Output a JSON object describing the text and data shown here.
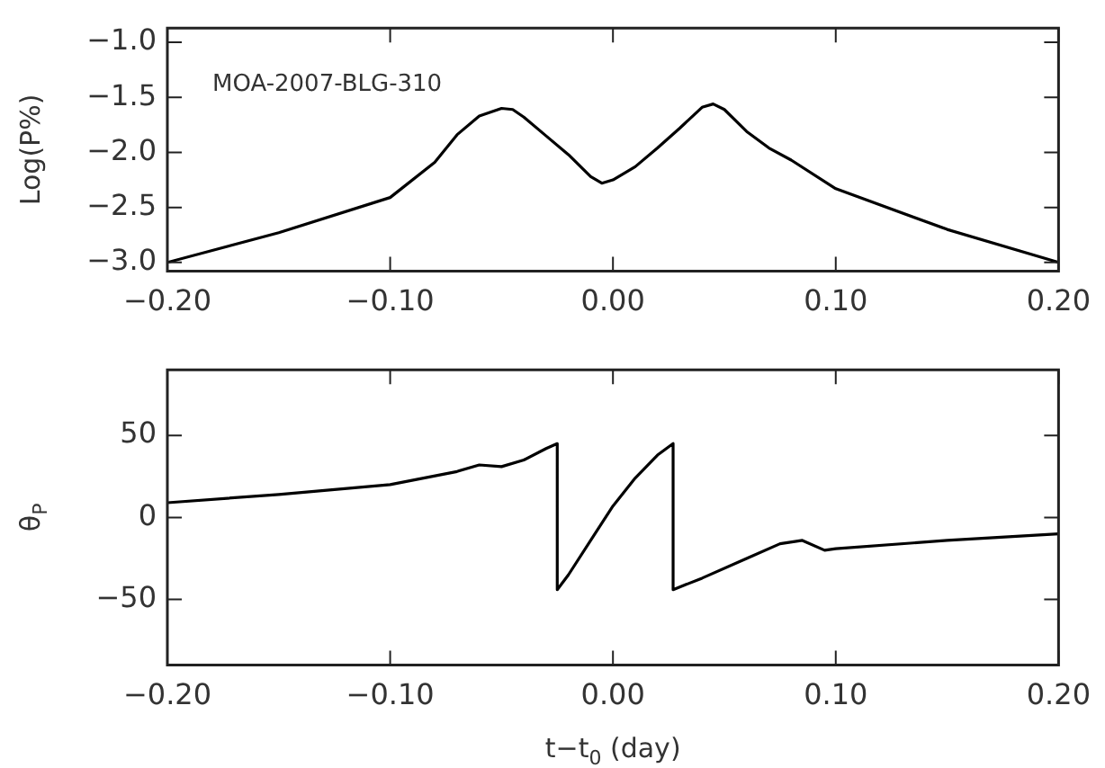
{
  "chart_data": [
    {
      "type": "line",
      "ylabel": "Log(P%)",
      "annotations": [
        "MOA-2007-BLG-310"
      ],
      "color": "#000000",
      "xlim": [
        -0.2,
        0.2
      ],
      "xticks": [
        {
          "value": -0.2,
          "label": "−0.20"
        },
        {
          "value": -0.1,
          "label": "−0.10"
        },
        {
          "value": 0,
          "label": "0.00"
        },
        {
          "value": 0.1,
          "label": "0.10"
        },
        {
          "value": 0.2,
          "label": "0.20"
        }
      ],
      "ylim": [
        -3.08,
        -0.87
      ],
      "yticks": [
        {
          "value": -3,
          "label": "−3.0"
        },
        {
          "value": -2.5,
          "label": "−2.5"
        },
        {
          "value": -2,
          "label": "−2.0"
        },
        {
          "value": -1.5,
          "label": "−1.5"
        },
        {
          "value": -1,
          "label": "−1.0"
        }
      ],
      "x": [
        -0.2,
        -0.15,
        -0.1,
        -0.08,
        -0.07,
        -0.06,
        -0.05,
        -0.045,
        -0.04,
        -0.03,
        -0.02,
        -0.01,
        -0.005,
        0,
        0.01,
        0.02,
        0.03,
        0.04,
        0.045,
        0.05,
        0.06,
        0.07,
        0.08,
        0.1,
        0.15,
        0.2
      ],
      "values": [
        -3.0,
        -2.73,
        -2.41,
        -2.09,
        -1.84,
        -1.67,
        -1.6,
        -1.61,
        -1.68,
        -1.85,
        -2.02,
        -2.22,
        -2.28,
        -2.25,
        -2.13,
        -1.96,
        -1.78,
        -1.59,
        -1.56,
        -1.61,
        -1.81,
        -1.96,
        -2.07,
        -2.33,
        -2.7,
        -3.0
      ]
    },
    {
      "type": "line",
      "xlabel": "t−t$_{0}$ (day)",
      "ylabel": "θ$_{P}$",
      "color": "#000000",
      "xlim": [
        -0.2,
        0.2
      ],
      "xticks": [
        {
          "value": -0.2,
          "label": "−0.20"
        },
        {
          "value": -0.1,
          "label": "−0.10"
        },
        {
          "value": 0,
          "label": "0.00"
        },
        {
          "value": 0.1,
          "label": "0.10"
        },
        {
          "value": 0.2,
          "label": "0.20"
        }
      ],
      "ylim": [
        -90,
        90
      ],
      "yticks": [
        {
          "value": -50,
          "label": "−50"
        },
        0,
        50
      ],
      "x": [
        -0.2,
        -0.15,
        -0.1,
        -0.07,
        -0.06,
        -0.05,
        -0.04,
        -0.03,
        -0.025,
        -0.025,
        -0.02,
        -0.01,
        0,
        0.01,
        0.02,
        0.027,
        0.027,
        0.04,
        0.06,
        0.075,
        0.085,
        0.095,
        0.1,
        0.15,
        0.2
      ],
      "values": [
        9,
        14,
        20,
        28,
        32,
        31,
        35,
        42,
        45,
        -44,
        -35,
        -14,
        7,
        24,
        38,
        45,
        -44,
        -37,
        -25,
        -16,
        -14,
        -20,
        -19,
        -14,
        -10
      ]
    }
  ]
}
